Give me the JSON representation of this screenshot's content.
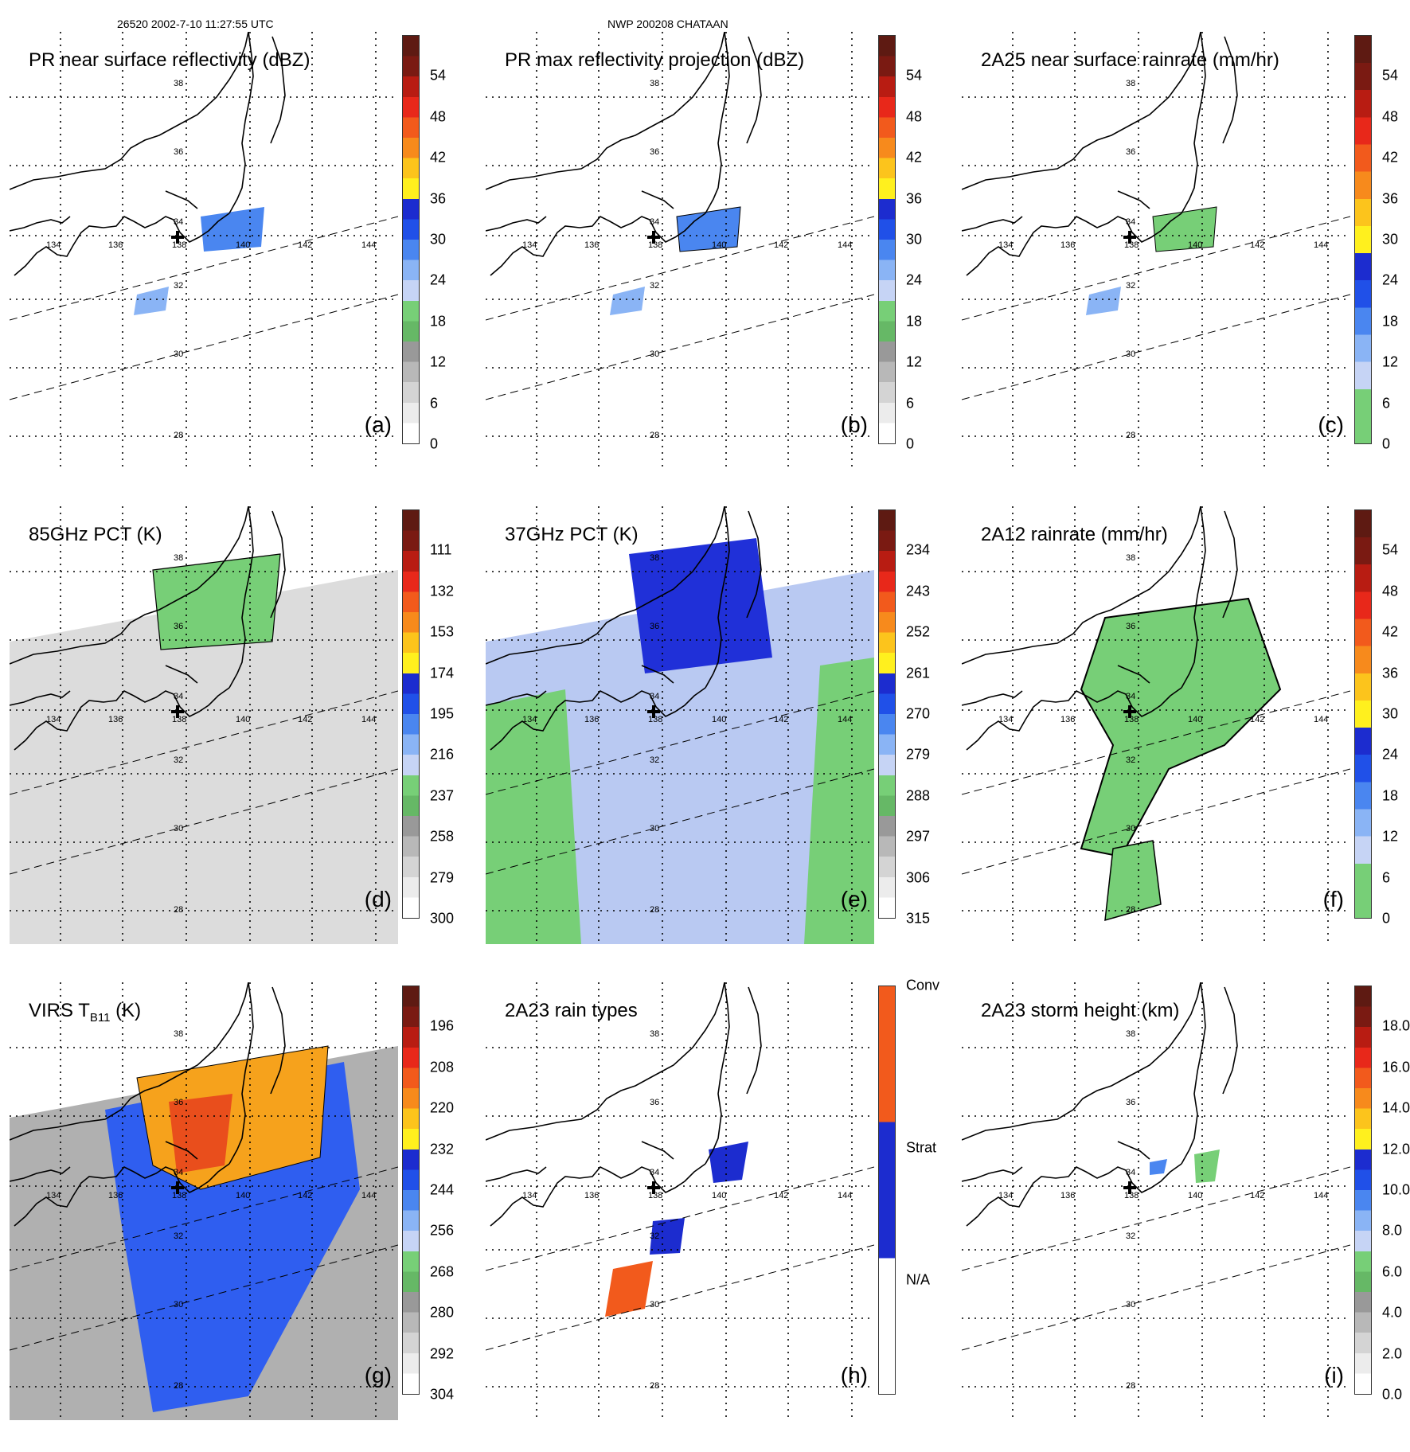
{
  "header": {
    "orbit_time": "26520 2002-7-10 11:27:55 UTC",
    "storm": "NWP 200208 CHATAAN"
  },
  "lon_labels": [
    "134",
    "136",
    "138",
    "140",
    "142",
    "144"
  ],
  "lat_labels": [
    "38",
    "36",
    "34",
    "32",
    "30",
    "28"
  ],
  "panels": [
    {
      "id": "a",
      "title": "PR near surface reflectivity (dBZ)",
      "label": "(a)",
      "ticks": [
        "54",
        "48",
        "42",
        "36",
        "30",
        "24",
        "18",
        "12",
        "6",
        "0"
      ],
      "colors": [
        "#5e1a12",
        "#7a1a12",
        "#b81c12",
        "#e8281a",
        "#f25a1c",
        "#f78a1c",
        "#fcc41c",
        "#fff01e",
        "#1c2ccf",
        "#2050e8",
        "#4a86f0",
        "#8ab4f5",
        "#c6d4f5",
        "#77cf77",
        "#66b866",
        "#999999",
        "#b8b8b8",
        "#d4d4d4",
        "#ececec",
        "#ffffff"
      ]
    },
    {
      "id": "b",
      "title": "PR max reflectivity projection (dBZ)",
      "label": "(b)",
      "ticks": [
        "54",
        "48",
        "42",
        "36",
        "30",
        "24",
        "18",
        "12",
        "6",
        "0"
      ],
      "colors": [
        "#5e1a12",
        "#7a1a12",
        "#b81c12",
        "#e8281a",
        "#f25a1c",
        "#f78a1c",
        "#fcc41c",
        "#fff01e",
        "#1c2ccf",
        "#2050e8",
        "#4a86f0",
        "#8ab4f5",
        "#c6d4f5",
        "#77cf77",
        "#66b866",
        "#999999",
        "#b8b8b8",
        "#d4d4d4",
        "#ececec",
        "#ffffff"
      ]
    },
    {
      "id": "c",
      "title": "2A25 near surface rainrate (mm/hr)",
      "label": "(c)",
      "ticks": [
        "54",
        "48",
        "42",
        "36",
        "30",
        "24",
        "18",
        "12",
        "6",
        "0"
      ],
      "colors": [
        "#5e1a12",
        "#7a1a12",
        "#b81c12",
        "#e8281a",
        "#f25a1c",
        "#f78a1c",
        "#fcc41c",
        "#fff01e",
        "#1c2ccf",
        "#2050e8",
        "#4a86f0",
        "#8ab4f5",
        "#c6d4f5",
        "#77cf77",
        "#77cf77"
      ]
    },
    {
      "id": "d",
      "title": "85GHz PCT (K)",
      "label": "(d)",
      "ticks": [
        "111",
        "132",
        "153",
        "174",
        "195",
        "216",
        "237",
        "258",
        "279",
        "300"
      ],
      "colors": [
        "#5e1a12",
        "#7a1a12",
        "#b81c12",
        "#e8281a",
        "#f25a1c",
        "#f78a1c",
        "#fcc41c",
        "#fff01e",
        "#1c2ccf",
        "#2050e8",
        "#4a86f0",
        "#8ab4f5",
        "#c6d4f5",
        "#77cf77",
        "#66b866",
        "#999999",
        "#b8b8b8",
        "#d4d4d4",
        "#ececec",
        "#ffffff"
      ]
    },
    {
      "id": "e",
      "title": "37GHz PCT (K)",
      "label": "(e)",
      "ticks": [
        "234",
        "243",
        "252",
        "261",
        "270",
        "279",
        "288",
        "297",
        "306",
        "315"
      ],
      "colors": [
        "#5e1a12",
        "#7a1a12",
        "#b81c12",
        "#e8281a",
        "#f25a1c",
        "#f78a1c",
        "#fcc41c",
        "#fff01e",
        "#1c2ccf",
        "#2050e8",
        "#4a86f0",
        "#8ab4f5",
        "#c6d4f5",
        "#77cf77",
        "#66b866",
        "#999999",
        "#b8b8b8",
        "#d4d4d4",
        "#ececec",
        "#ffffff"
      ]
    },
    {
      "id": "f",
      "title": "2A12 rainrate (mm/hr)",
      "label": "(f)",
      "ticks": [
        "54",
        "48",
        "42",
        "36",
        "30",
        "24",
        "18",
        "12",
        "6",
        "0"
      ],
      "colors": [
        "#5e1a12",
        "#7a1a12",
        "#b81c12",
        "#e8281a",
        "#f25a1c",
        "#f78a1c",
        "#fcc41c",
        "#fff01e",
        "#1c2ccf",
        "#2050e8",
        "#4a86f0",
        "#8ab4f5",
        "#c6d4f5",
        "#77cf77",
        "#77cf77"
      ]
    },
    {
      "id": "g",
      "title": "VIRS T",
      "title_sub": "B11",
      "title_suffix": " (K)",
      "label": "(g)",
      "ticks": [
        "196",
        "208",
        "220",
        "232",
        "244",
        "256",
        "268",
        "280",
        "292",
        "304"
      ],
      "colors": [
        "#5e1a12",
        "#7a1a12",
        "#b81c12",
        "#e8281a",
        "#f25a1c",
        "#f78a1c",
        "#fcc41c",
        "#fff01e",
        "#1c2ccf",
        "#2050e8",
        "#4a86f0",
        "#8ab4f5",
        "#c6d4f5",
        "#77cf77",
        "#66b866",
        "#999999",
        "#b8b8b8",
        "#d4d4d4",
        "#ececec",
        "#ffffff"
      ]
    },
    {
      "id": "h",
      "title": "2A23 rain types",
      "label": "(h)",
      "ticks": [
        "Conv",
        "Strat",
        "N/A"
      ],
      "colors": [
        "#f25a1c",
        "#1c2ccf",
        "#ffffff"
      ]
    },
    {
      "id": "i",
      "title": "2A23 storm height (km)",
      "label": "(i)",
      "ticks": [
        "18.0",
        "16.0",
        "14.0",
        "12.0",
        "10.0",
        "8.0",
        "6.0",
        "4.0",
        "2.0",
        "0.0"
      ],
      "colors": [
        "#5e1a12",
        "#7a1a12",
        "#b81c12",
        "#e8281a",
        "#f25a1c",
        "#f78a1c",
        "#fcc41c",
        "#fff01e",
        "#1c2ccf",
        "#2050e8",
        "#4a86f0",
        "#8ab4f5",
        "#c6d4f5",
        "#77cf77",
        "#66b866",
        "#999999",
        "#b8b8b8",
        "#d4d4d4",
        "#ececec",
        "#ffffff"
      ]
    }
  ]
}
